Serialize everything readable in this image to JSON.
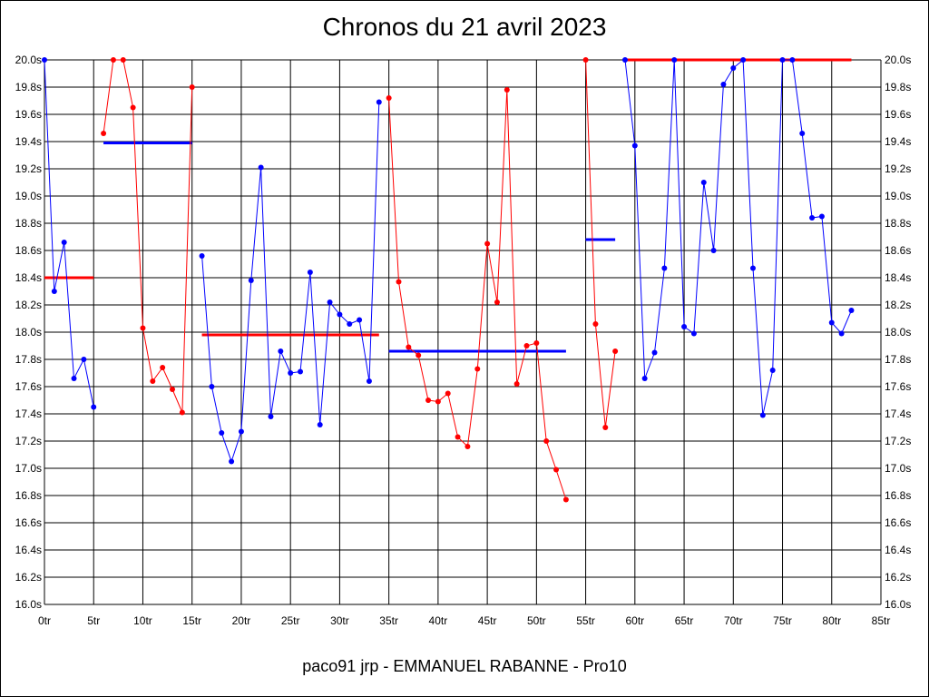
{
  "chart_data": {
    "type": "line",
    "title": "Chronos du 21 avril 2023",
    "footer": "paco91 jrp - EMMANUEL RABANNE - Pro10",
    "xlabel": "",
    "ylabel": "",
    "xlim": [
      0,
      85
    ],
    "ylim": [
      16.0,
      20.0
    ],
    "x_ticks": [
      0,
      5,
      10,
      15,
      20,
      25,
      30,
      35,
      40,
      45,
      50,
      55,
      60,
      65,
      70,
      75,
      80,
      85
    ],
    "x_tick_labels": [
      "0tr",
      "5tr",
      "10tr",
      "15tr",
      "20tr",
      "25tr",
      "30tr",
      "35tr",
      "40tr",
      "45tr",
      "50tr",
      "55tr",
      "60tr",
      "65tr",
      "70tr",
      "75tr",
      "80tr",
      "85tr"
    ],
    "y_ticks": [
      16.0,
      16.2,
      16.4,
      16.6,
      16.8,
      17.0,
      17.2,
      17.4,
      17.6,
      17.8,
      18.0,
      18.2,
      18.4,
      18.6,
      18.8,
      19.0,
      19.2,
      19.4,
      19.6,
      19.8,
      20.0
    ],
    "y_tick_labels": [
      "16.0s",
      "16.2s",
      "16.4s",
      "16.6s",
      "16.8s",
      "17.0s",
      "17.2s",
      "17.4s",
      "17.6s",
      "17.8s",
      "18.0s",
      "18.2s",
      "18.4s",
      "18.6s",
      "18.8s",
      "19.0s",
      "19.2s",
      "19.4s",
      "19.6s",
      "19.8s",
      "20.0s"
    ],
    "grid": true,
    "colors": {
      "blue": "#0000ff",
      "red": "#ff0000"
    },
    "series": [
      {
        "color": "#0000ff",
        "points": [
          [
            0,
            20.0
          ],
          [
            1,
            18.3
          ],
          [
            2,
            18.66
          ],
          [
            3,
            17.66
          ],
          [
            4,
            17.8
          ],
          [
            5,
            17.45
          ]
        ]
      },
      {
        "color": "#ff0000",
        "points": [
          [
            6,
            19.46
          ],
          [
            7,
            20.0
          ],
          [
            8,
            20.0
          ],
          [
            9,
            19.65
          ],
          [
            10,
            18.03
          ],
          [
            11,
            17.64
          ],
          [
            12,
            17.74
          ],
          [
            13,
            17.58
          ],
          [
            14,
            17.41
          ],
          [
            15,
            19.8
          ]
        ]
      },
      {
        "color": "#0000ff",
        "points": [
          [
            16,
            18.56
          ],
          [
            17,
            17.6
          ],
          [
            18,
            17.26
          ],
          [
            19,
            17.05
          ],
          [
            20,
            17.27
          ],
          [
            21,
            18.38
          ],
          [
            22,
            19.21
          ],
          [
            23,
            17.38
          ],
          [
            24,
            17.86
          ],
          [
            25,
            17.7
          ],
          [
            26,
            17.71
          ],
          [
            27,
            18.44
          ],
          [
            28,
            17.32
          ],
          [
            29,
            18.22
          ],
          [
            30,
            18.13
          ],
          [
            31,
            18.06
          ],
          [
            32,
            18.09
          ],
          [
            33,
            17.64
          ],
          [
            34,
            19.69
          ]
        ]
      },
      {
        "color": "#ff0000",
        "points": [
          [
            35,
            19.72
          ],
          [
            36,
            18.37
          ],
          [
            37,
            17.89
          ],
          [
            38,
            17.83
          ],
          [
            39,
            17.5
          ],
          [
            40,
            17.49
          ],
          [
            41,
            17.55
          ],
          [
            42,
            17.23
          ],
          [
            43,
            17.16
          ],
          [
            44,
            17.73
          ],
          [
            45,
            18.65
          ],
          [
            46,
            18.22
          ],
          [
            47,
            19.78
          ],
          [
            48,
            17.62
          ],
          [
            49,
            17.9
          ],
          [
            50,
            17.92
          ],
          [
            51,
            17.2
          ],
          [
            52,
            16.99
          ],
          [
            53,
            16.77
          ]
        ]
      },
      {
        "color": "#ff0000",
        "points": [
          [
            55,
            20.0
          ],
          [
            56,
            18.06
          ],
          [
            57,
            17.3
          ],
          [
            58,
            17.86
          ]
        ]
      },
      {
        "color": "#0000ff",
        "points": [
          [
            59,
            20.0
          ],
          [
            60,
            19.37
          ],
          [
            61,
            17.66
          ],
          [
            62,
            17.85
          ],
          [
            63,
            18.47
          ],
          [
            64,
            20.0
          ],
          [
            65,
            18.04
          ],
          [
            66,
            17.99
          ],
          [
            67,
            19.1
          ],
          [
            68,
            18.6
          ],
          [
            69,
            19.82
          ],
          [
            70,
            19.94
          ],
          [
            71,
            20.0
          ],
          [
            72,
            18.47
          ],
          [
            73,
            17.39
          ],
          [
            74,
            17.72
          ],
          [
            75,
            20.0
          ],
          [
            76,
            20.0
          ],
          [
            77,
            19.46
          ],
          [
            78,
            18.84
          ],
          [
            79,
            18.85
          ],
          [
            80,
            18.07
          ],
          [
            81,
            17.99
          ],
          [
            82,
            18.16
          ]
        ]
      }
    ],
    "averages": [
      {
        "color": "#ff0000",
        "x": [
          0,
          5
        ],
        "y": 18.4
      },
      {
        "color": "#0000ff",
        "x": [
          6,
          15
        ],
        "y": 19.39
      },
      {
        "color": "#ff0000",
        "x": [
          16,
          34
        ],
        "y": 17.98
      },
      {
        "color": "#0000ff",
        "x": [
          35,
          53
        ],
        "y": 17.86
      },
      {
        "color": "#0000ff",
        "x": [
          55,
          58
        ],
        "y": 18.68
      },
      {
        "color": "#ff0000",
        "x": [
          59,
          82
        ],
        "y": 20.0
      }
    ]
  }
}
